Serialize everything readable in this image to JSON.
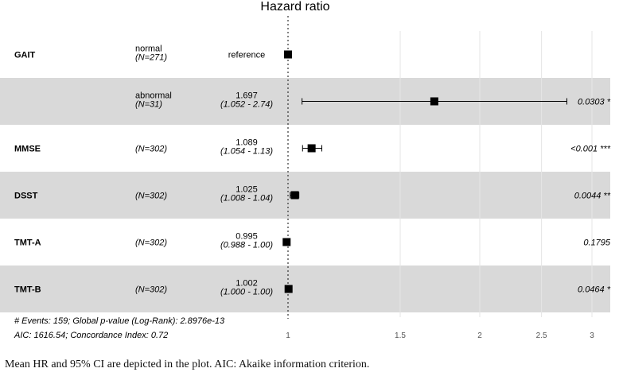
{
  "chart_data": {
    "type": "forest",
    "title": "Hazard ratio",
    "x_scale": "log",
    "reference_line": 1,
    "x_ticks": [
      {
        "value": 1,
        "label": "1"
      },
      {
        "value": 1.5,
        "label": "1.5"
      },
      {
        "value": 2,
        "label": "2"
      },
      {
        "value": 2.5,
        "label": "2.5"
      },
      {
        "value": 3,
        "label": "3"
      }
    ],
    "rows": [
      {
        "variable": "GAIT",
        "level": "normal",
        "n": "(N=271)",
        "hr_text": "reference",
        "ci_text": "",
        "p_text": "",
        "hr": 1.0,
        "lo": null,
        "hi": null,
        "shaded": false
      },
      {
        "variable": "",
        "level": "abnormal",
        "n": "(N=31)",
        "hr_text": "1.697",
        "ci_text": "(1.052 - 2.74)",
        "p_text": "0.0303 *",
        "hr": 1.697,
        "lo": 1.052,
        "hi": 2.74,
        "shaded": true
      },
      {
        "variable": "MMSE",
        "level": "",
        "n": "(N=302)",
        "hr_text": "1.089",
        "ci_text": "(1.054 - 1.13)",
        "p_text": "<0.001 ***",
        "hr": 1.089,
        "lo": 1.054,
        "hi": 1.13,
        "shaded": false
      },
      {
        "variable": "DSST",
        "level": "",
        "n": "(N=302)",
        "hr_text": "1.025",
        "ci_text": "(1.008 - 1.04)",
        "p_text": "0.0044 **",
        "hr": 1.025,
        "lo": 1.008,
        "hi": 1.04,
        "shaded": true
      },
      {
        "variable": "TMT-A",
        "level": "",
        "n": "(N=302)",
        "hr_text": "0.995",
        "ci_text": "(0.988 - 1.00)",
        "p_text": "0.1795",
        "hr": 0.995,
        "lo": 0.988,
        "hi": 1.0,
        "shaded": false
      },
      {
        "variable": "TMT-B",
        "level": "",
        "n": "(N=302)",
        "hr_text": "1.002",
        "ci_text": "(1.000 - 1.00)",
        "p_text": "0.0464 *",
        "hr": 1.002,
        "lo": 1.0,
        "hi": 1.0,
        "shaded": true
      }
    ],
    "footnote_line1": "# Events: 159; Global p-value (Log-Rank): 2.8976e-13",
    "footnote_line2": "AIC: 1616.54; Concordance Index: 0.72",
    "colors": {
      "shade": "#d9d9d9",
      "grid": "#e6e6e6",
      "mark": "#000000"
    }
  },
  "caption": "Mean HR and 95% CI are depicted in the plot. AIC: Akaike information criterion."
}
